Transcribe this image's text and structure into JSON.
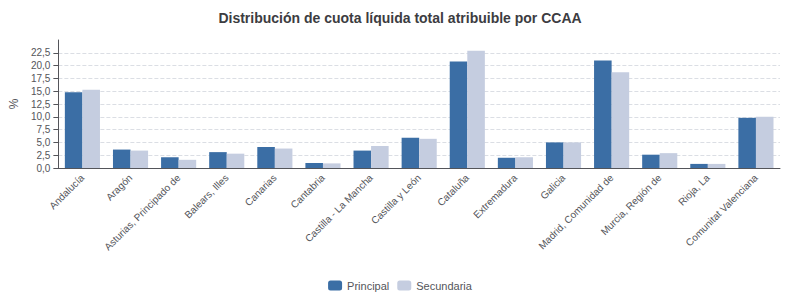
{
  "chart_data": {
    "type": "bar",
    "title": "Distribución de cuota líquida total atribuible por CCAA",
    "categories": [
      "Andalucía",
      "Aragón",
      "Asturias, Principado de",
      "Balears, Illes",
      "Canarias",
      "Cantabria",
      "Castilla - La Mancha",
      "Castilla y León",
      "Cataluña",
      "Extremadura",
      "Galicia",
      "Madrid, Comunidad de",
      "Murcia, Región de",
      "Rioja, La",
      "Comunitat Valenciana"
    ],
    "series": [
      {
        "name": "Principal",
        "color": "#3B6EA5",
        "values": [
          14.8,
          3.6,
          2.1,
          3.1,
          4.1,
          1.0,
          3.4,
          5.9,
          20.8,
          2.0,
          5.0,
          21.0,
          2.6,
          0.8,
          9.8
        ]
      },
      {
        "name": "Secundaria",
        "color": "#C5CDE0",
        "values": [
          15.3,
          3.4,
          1.6,
          2.8,
          3.8,
          0.9,
          4.3,
          5.7,
          22.9,
          2.1,
          5.0,
          18.7,
          2.9,
          0.8,
          10.0
        ]
      }
    ],
    "ylabel": "%",
    "ylim": [
      0,
      25
    ],
    "yticks": [
      {
        "value": 0.0,
        "label": "0,0"
      },
      {
        "value": 2.5,
        "label": "2,5"
      },
      {
        "value": 5.0,
        "label": "5,0"
      },
      {
        "value": 7.5,
        "label": "7,5"
      },
      {
        "value": 10.0,
        "label": "10,0"
      },
      {
        "value": 12.5,
        "label": "12,5"
      },
      {
        "value": 15.0,
        "label": "15,0"
      },
      {
        "value": 17.5,
        "label": "17,5"
      },
      {
        "value": 20.0,
        "label": "20,0"
      },
      {
        "value": 22.5,
        "label": "22,5"
      }
    ],
    "grid": true,
    "legend": "bottom"
  }
}
